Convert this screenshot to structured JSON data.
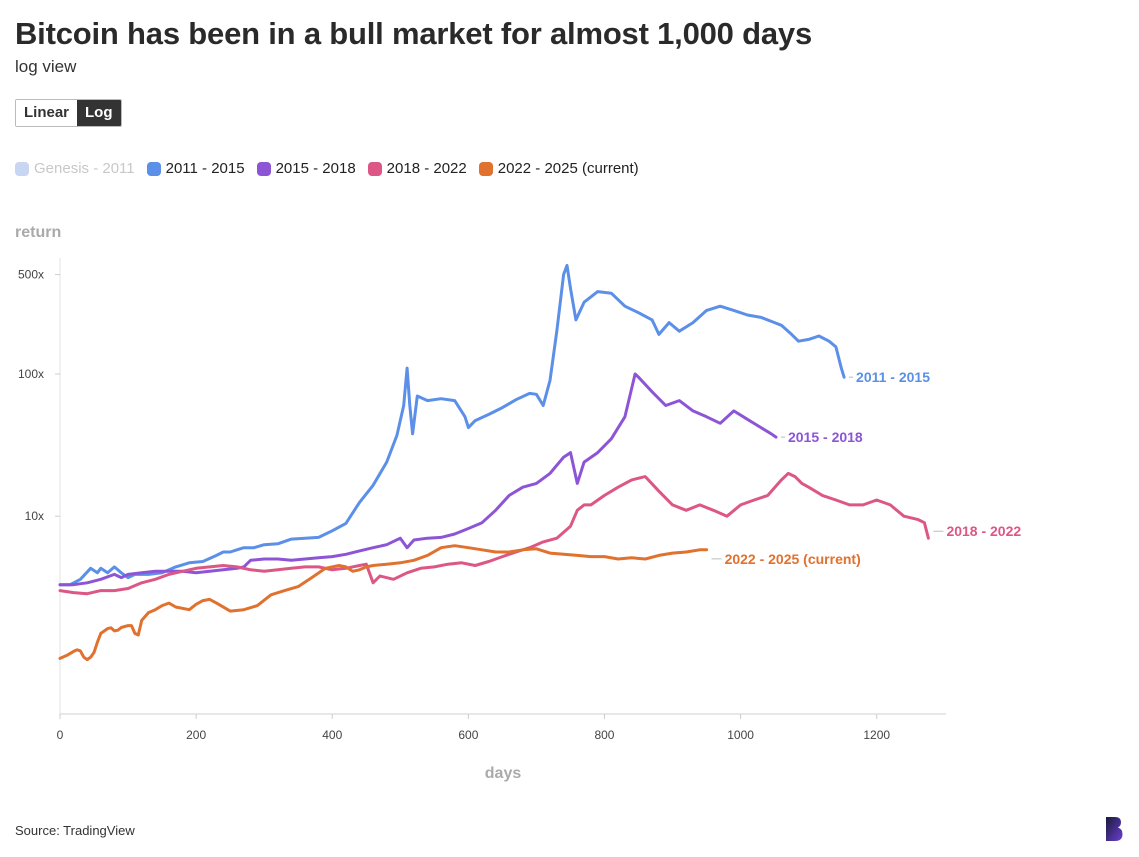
{
  "header": {
    "title": "Bitcoin has been in a bull market for almost 1,000 days",
    "subtitle": "log view"
  },
  "toggle": {
    "linear_label": "Linear",
    "log_label": "Log",
    "active": "Log"
  },
  "legend": [
    {
      "label": "Genesis - 2011",
      "color": "#c9d6f3",
      "active": false
    },
    {
      "label": "2011 - 2015",
      "color": "#5b8fe8",
      "active": true
    },
    {
      "label": "2015 - 2018",
      "color": "#8d55d6",
      "active": true
    },
    {
      "label": "2018 - 2022",
      "color": "#dc5686",
      "active": true
    },
    {
      "label": "2022 - 2025 (current)",
      "color": "#e0712e",
      "active": true
    }
  ],
  "source": "Source: TradingView",
  "chart_data": {
    "type": "line",
    "title": "Bitcoin has been in a bull market for almost 1,000 days",
    "subtitle": "log view",
    "xlabel": "days",
    "ylabel": "return",
    "x_ticks": [
      0,
      200,
      400,
      600,
      800,
      1000,
      1200
    ],
    "x_tick_labels": [
      "0",
      "200",
      "400",
      "600",
      "800",
      "1000",
      "1200"
    ],
    "y_ticks": [
      10,
      100,
      500
    ],
    "y_tick_labels": [
      "10x",
      "100x",
      "500x"
    ],
    "y_scale": "log",
    "xlim": [
      0,
      1300
    ],
    "ylim": [
      0.9,
      700
    ],
    "grid": false,
    "legend_position": "top-left",
    "series": [
      {
        "name": "2011 - 2015",
        "color": "#5b8fe8",
        "end_label": "2011 - 2015",
        "points": [
          [
            0,
            3.3
          ],
          [
            15,
            3.3
          ],
          [
            30,
            3.6
          ],
          [
            45,
            4.3
          ],
          [
            55,
            4.0
          ],
          [
            60,
            4.3
          ],
          [
            70,
            4.0
          ],
          [
            80,
            4.4
          ],
          [
            90,
            4.0
          ],
          [
            100,
            3.7
          ],
          [
            110,
            3.9
          ],
          [
            120,
            3.9
          ],
          [
            130,
            3.9
          ],
          [
            150,
            4.0
          ],
          [
            170,
            4.4
          ],
          [
            190,
            4.7
          ],
          [
            210,
            4.8
          ],
          [
            230,
            5.3
          ],
          [
            240,
            5.6
          ],
          [
            250,
            5.6
          ],
          [
            260,
            5.8
          ],
          [
            270,
            6.0
          ],
          [
            285,
            6.0
          ],
          [
            300,
            6.3
          ],
          [
            320,
            6.4
          ],
          [
            340,
            6.9
          ],
          [
            360,
            7.0
          ],
          [
            380,
            7.1
          ],
          [
            400,
            7.9
          ],
          [
            420,
            8.9
          ],
          [
            440,
            12.5
          ],
          [
            460,
            16.5
          ],
          [
            480,
            24
          ],
          [
            495,
            37
          ],
          [
            505,
            60
          ],
          [
            510,
            110
          ],
          [
            514,
            60
          ],
          [
            518,
            38
          ],
          [
            525,
            70
          ],
          [
            540,
            65
          ],
          [
            560,
            67
          ],
          [
            580,
            65
          ],
          [
            595,
            50
          ],
          [
            600,
            42
          ],
          [
            610,
            47
          ],
          [
            630,
            52
          ],
          [
            650,
            58
          ],
          [
            670,
            66
          ],
          [
            690,
            73
          ],
          [
            700,
            72
          ],
          [
            710,
            60
          ],
          [
            720,
            90
          ],
          [
            730,
            200
          ],
          [
            740,
            500
          ],
          [
            745,
            580
          ],
          [
            750,
            400
          ],
          [
            758,
            240
          ],
          [
            770,
            320
          ],
          [
            790,
            380
          ],
          [
            810,
            370
          ],
          [
            830,
            300
          ],
          [
            850,
            270
          ],
          [
            870,
            240
          ],
          [
            880,
            190
          ],
          [
            895,
            230
          ],
          [
            910,
            200
          ],
          [
            930,
            230
          ],
          [
            950,
            280
          ],
          [
            970,
            300
          ],
          [
            990,
            280
          ],
          [
            1010,
            260
          ],
          [
            1030,
            250
          ],
          [
            1050,
            230
          ],
          [
            1060,
            220
          ],
          [
            1075,
            190
          ],
          [
            1085,
            170
          ],
          [
            1100,
            175
          ],
          [
            1115,
            185
          ],
          [
            1130,
            170
          ],
          [
            1140,
            155
          ],
          [
            1148,
            110
          ],
          [
            1152,
            95
          ]
        ]
      },
      {
        "name": "2015 - 2018",
        "color": "#8d55d6",
        "end_label": "2015 - 2018",
        "points": [
          [
            0,
            3.3
          ],
          [
            20,
            3.3
          ],
          [
            40,
            3.4
          ],
          [
            60,
            3.6
          ],
          [
            80,
            3.9
          ],
          [
            90,
            3.7
          ],
          [
            100,
            3.9
          ],
          [
            120,
            4.0
          ],
          [
            140,
            4.1
          ],
          [
            160,
            4.1
          ],
          [
            180,
            4.1
          ],
          [
            200,
            4.0
          ],
          [
            220,
            4.1
          ],
          [
            240,
            4.2
          ],
          [
            260,
            4.3
          ],
          [
            270,
            4.4
          ],
          [
            280,
            4.9
          ],
          [
            300,
            5.0
          ],
          [
            320,
            5.0
          ],
          [
            340,
            4.9
          ],
          [
            360,
            5.0
          ],
          [
            380,
            5.1
          ],
          [
            400,
            5.2
          ],
          [
            420,
            5.4
          ],
          [
            440,
            5.7
          ],
          [
            460,
            6.0
          ],
          [
            480,
            6.3
          ],
          [
            500,
            7.0
          ],
          [
            510,
            6.0
          ],
          [
            520,
            6.8
          ],
          [
            540,
            7.0
          ],
          [
            560,
            7.1
          ],
          [
            580,
            7.5
          ],
          [
            600,
            8.2
          ],
          [
            620,
            9.0
          ],
          [
            640,
            11
          ],
          [
            660,
            14
          ],
          [
            680,
            16
          ],
          [
            700,
            17
          ],
          [
            720,
            20
          ],
          [
            740,
            26
          ],
          [
            750,
            28
          ],
          [
            760,
            17
          ],
          [
            770,
            24
          ],
          [
            790,
            28
          ],
          [
            810,
            35
          ],
          [
            830,
            50
          ],
          [
            845,
            100
          ],
          [
            850,
            95
          ],
          [
            870,
            75
          ],
          [
            890,
            60
          ],
          [
            910,
            65
          ],
          [
            930,
            55
          ],
          [
            950,
            50
          ],
          [
            970,
            45
          ],
          [
            990,
            55
          ],
          [
            1010,
            48
          ],
          [
            1030,
            42
          ],
          [
            1045,
            38
          ],
          [
            1052,
            36
          ]
        ]
      },
      {
        "name": "2018 - 2022",
        "color": "#dc5686",
        "end_label": "2018 - 2022",
        "points": [
          [
            0,
            3.0
          ],
          [
            20,
            2.9
          ],
          [
            40,
            2.85
          ],
          [
            60,
            3.0
          ],
          [
            80,
            3.0
          ],
          [
            100,
            3.1
          ],
          [
            120,
            3.4
          ],
          [
            140,
            3.6
          ],
          [
            160,
            3.9
          ],
          [
            180,
            4.1
          ],
          [
            200,
            4.3
          ],
          [
            220,
            4.4
          ],
          [
            240,
            4.5
          ],
          [
            260,
            4.4
          ],
          [
            280,
            4.2
          ],
          [
            300,
            4.1
          ],
          [
            320,
            4.2
          ],
          [
            340,
            4.3
          ],
          [
            360,
            4.4
          ],
          [
            380,
            4.4
          ],
          [
            400,
            4.2
          ],
          [
            420,
            4.3
          ],
          [
            440,
            4.5
          ],
          [
            450,
            4.6
          ],
          [
            460,
            3.4
          ],
          [
            470,
            3.8
          ],
          [
            490,
            3.6
          ],
          [
            510,
            4.0
          ],
          [
            530,
            4.3
          ],
          [
            550,
            4.4
          ],
          [
            570,
            4.6
          ],
          [
            590,
            4.7
          ],
          [
            610,
            4.5
          ],
          [
            630,
            4.8
          ],
          [
            650,
            5.2
          ],
          [
            670,
            5.6
          ],
          [
            690,
            6.0
          ],
          [
            710,
            6.6
          ],
          [
            730,
            7.0
          ],
          [
            750,
            8.5
          ],
          [
            760,
            11
          ],
          [
            770,
            12
          ],
          [
            780,
            12
          ],
          [
            800,
            14
          ],
          [
            820,
            16
          ],
          [
            840,
            18
          ],
          [
            860,
            19
          ],
          [
            880,
            15
          ],
          [
            900,
            12
          ],
          [
            920,
            11
          ],
          [
            940,
            12
          ],
          [
            960,
            11
          ],
          [
            980,
            10
          ],
          [
            1000,
            12
          ],
          [
            1020,
            13
          ],
          [
            1040,
            14
          ],
          [
            1060,
            18
          ],
          [
            1070,
            20
          ],
          [
            1080,
            19
          ],
          [
            1090,
            17
          ],
          [
            1100,
            16
          ],
          [
            1120,
            14
          ],
          [
            1140,
            13
          ],
          [
            1160,
            12
          ],
          [
            1180,
            12
          ],
          [
            1200,
            13
          ],
          [
            1220,
            12
          ],
          [
            1240,
            10
          ],
          [
            1260,
            9.5
          ],
          [
            1270,
            9
          ],
          [
            1276,
            7
          ]
        ]
      },
      {
        "name": "2022 - 2025 (current)",
        "color": "#e0712e",
        "end_label": "2022 - 2025 (current)",
        "points": [
          [
            0,
            1.0
          ],
          [
            10,
            1.05
          ],
          [
            20,
            1.12
          ],
          [
            25,
            1.15
          ],
          [
            30,
            1.13
          ],
          [
            35,
            1.02
          ],
          [
            40,
            0.98
          ],
          [
            45,
            1.02
          ],
          [
            50,
            1.1
          ],
          [
            55,
            1.3
          ],
          [
            60,
            1.5
          ],
          [
            70,
            1.62
          ],
          [
            75,
            1.64
          ],
          [
            80,
            1.56
          ],
          [
            85,
            1.58
          ],
          [
            90,
            1.65
          ],
          [
            100,
            1.7
          ],
          [
            105,
            1.7
          ],
          [
            110,
            1.5
          ],
          [
            115,
            1.46
          ],
          [
            120,
            1.85
          ],
          [
            130,
            2.1
          ],
          [
            140,
            2.2
          ],
          [
            150,
            2.35
          ],
          [
            160,
            2.45
          ],
          [
            170,
            2.3
          ],
          [
            190,
            2.2
          ],
          [
            200,
            2.4
          ],
          [
            210,
            2.55
          ],
          [
            220,
            2.6
          ],
          [
            230,
            2.45
          ],
          [
            250,
            2.15
          ],
          [
            270,
            2.2
          ],
          [
            290,
            2.35
          ],
          [
            310,
            2.8
          ],
          [
            330,
            3.0
          ],
          [
            350,
            3.2
          ],
          [
            370,
            3.7
          ],
          [
            390,
            4.3
          ],
          [
            410,
            4.5
          ],
          [
            420,
            4.4
          ],
          [
            430,
            4.1
          ],
          [
            440,
            4.2
          ],
          [
            450,
            4.4
          ],
          [
            460,
            4.5
          ],
          [
            480,
            4.6
          ],
          [
            500,
            4.7
          ],
          [
            520,
            4.9
          ],
          [
            540,
            5.3
          ],
          [
            560,
            6.0
          ],
          [
            580,
            6.2
          ],
          [
            600,
            6.0
          ],
          [
            620,
            5.8
          ],
          [
            640,
            5.6
          ],
          [
            660,
            5.6
          ],
          [
            680,
            5.8
          ],
          [
            700,
            5.9
          ],
          [
            720,
            5.5
          ],
          [
            740,
            5.4
          ],
          [
            760,
            5.3
          ],
          [
            780,
            5.2
          ],
          [
            800,
            5.2
          ],
          [
            820,
            5.0
          ],
          [
            840,
            5.1
          ],
          [
            860,
            5.0
          ],
          [
            880,
            5.3
          ],
          [
            900,
            5.5
          ],
          [
            920,
            5.6
          ],
          [
            940,
            5.8
          ],
          [
            950,
            5.8
          ]
        ]
      }
    ]
  }
}
